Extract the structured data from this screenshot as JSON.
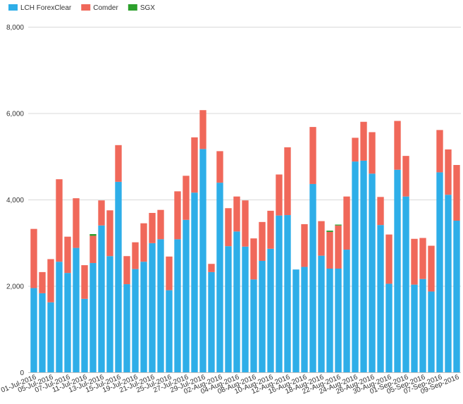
{
  "chart_data": {
    "type": "bar",
    "stacked": true,
    "legend_position": "top-left",
    "grid": "horizontal",
    "ylim": [
      0,
      8000
    ],
    "y_ticks": [
      "0",
      "2,000",
      "4,000",
      "6,000",
      "8,000"
    ],
    "y_tick_values": [
      0,
      2000,
      4000,
      6000,
      8000
    ],
    "colors": {
      "LCH ForexClear": "#2eaee8",
      "Comder": "#f0685a",
      "SGX": "#2ca02c"
    },
    "series": [
      {
        "name": "LCH ForexClear",
        "color": "#2eaee8",
        "values": [
          1950,
          1830,
          1620,
          2560,
          2300,
          2880,
          1700,
          2530,
          3400,
          2690,
          4410,
          2040,
          2390,
          2560,
          2990,
          3080,
          1900,
          3080,
          3530,
          4160,
          5170,
          2320,
          4390,
          2920,
          3260,
          2910,
          2150,
          2580,
          2860,
          3630,
          3640,
          2380,
          2440,
          4360,
          2700,
          2400,
          2400,
          2840,
          4880,
          4900,
          4600,
          3410,
          2050,
          4690,
          4070,
          2030,
          2160,
          1870,
          4630,
          4110,
          3510
        ]
      },
      {
        "name": "Comder",
        "color": "#f0685a",
        "values": [
          1370,
          490,
          1000,
          1910,
          840,
          1150,
          780,
          630,
          580,
          1060,
          850,
          650,
          620,
          890,
          700,
          680,
          780,
          1110,
          1020,
          1280,
          900,
          190,
          730,
          880,
          810,
          1070,
          950,
          900,
          880,
          950,
          1570,
          0,
          990,
          1320,
          800,
          850,
          1000,
          1230,
          550,
          900,
          960,
          650,
          1140,
          1130,
          940,
          1060,
          950,
          1060,
          980,
          1050,
          1290
        ]
      },
      {
        "name": "SGX",
        "color": "#2ca02c",
        "values": [
          0,
          0,
          0,
          0,
          0,
          0,
          0,
          40,
          0,
          0,
          0,
          0,
          0,
          0,
          0,
          0,
          0,
          0,
          0,
          0,
          0,
          0,
          0,
          0,
          0,
          0,
          0,
          0,
          0,
          0,
          0,
          0,
          0,
          0,
          0,
          30,
          20,
          0,
          0,
          0,
          0,
          0,
          0,
          0,
          0,
          0,
          0,
          0,
          0,
          0,
          0
        ]
      }
    ],
    "x_tick_labels": [
      "01-Jul-2016",
      "05-Jul-2016",
      "07-Jul-2016",
      "11-Jul-2016",
      "13-Jul-2016",
      "15-Jul-2016",
      "19-Jul-2016",
      "21-Jul-2016",
      "25-Jul-2016",
      "27-Jul-2016",
      "29-Jul-2016",
      "02-Aug-2016",
      "04-Aug-2016",
      "08-Aug-2016",
      "10-Aug-2016",
      "12-Aug-2016",
      "16-Aug-2016",
      "18-Aug-2016",
      "22-Aug-2016",
      "24-Aug-2016",
      "26-Aug-2016",
      "30-Aug-2016",
      "01-Sep-2016",
      "05-Sep-2016",
      "07-Sep-2016",
      "09-Sep-2016"
    ]
  }
}
